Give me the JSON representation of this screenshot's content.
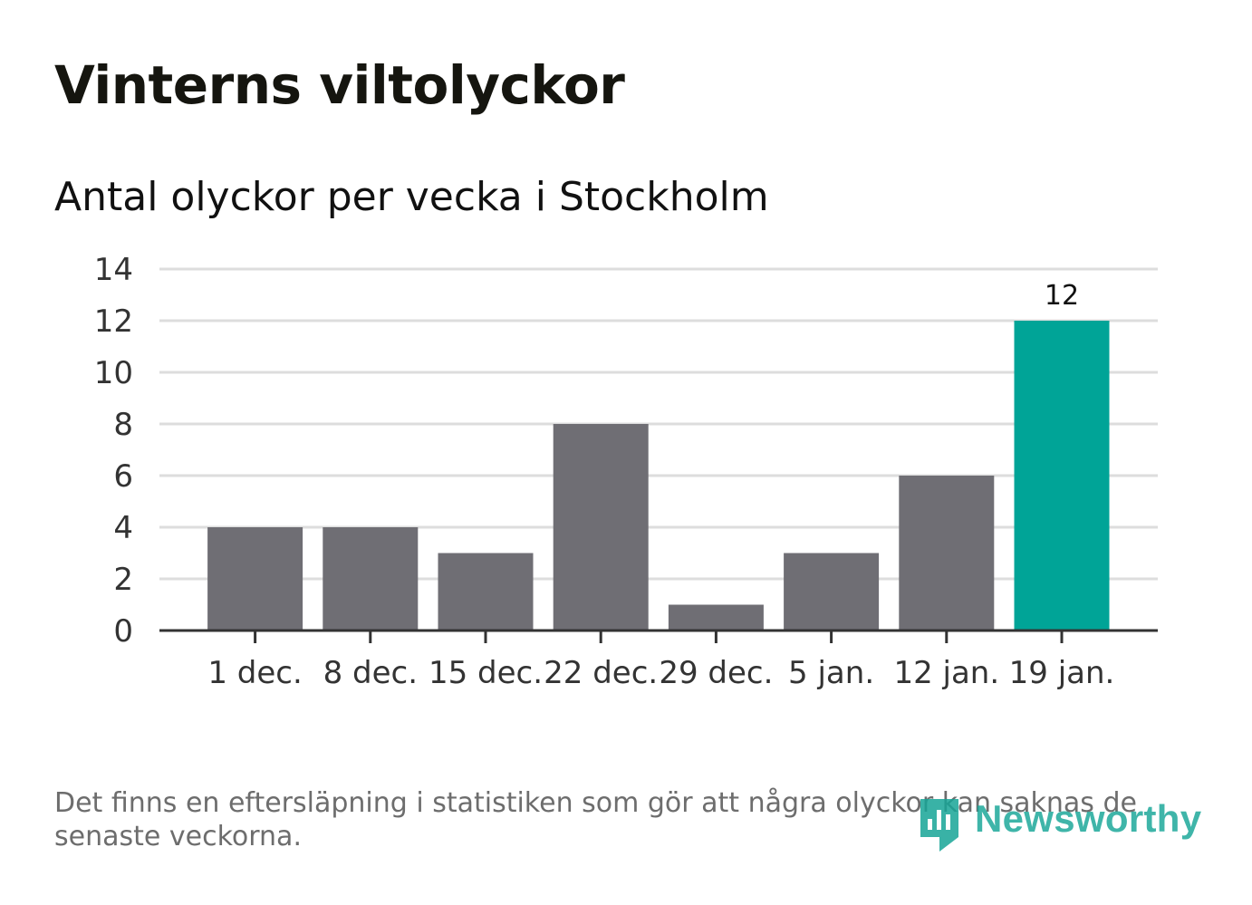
{
  "header": {
    "title": "Vinterns viltolyckor",
    "subtitle": "Antal olyckor per vecka i Stockholm"
  },
  "chart_data": {
    "type": "bar",
    "title": "Vinterns viltolyckor",
    "subtitle": "Antal olyckor per vecka i Stockholm",
    "xlabel": "",
    "ylabel": "",
    "categories": [
      "1 dec.",
      "8 dec.",
      "15 dec.",
      "22 dec.",
      "29 dec.",
      "5 jan.",
      "12 jan.",
      "19 jan."
    ],
    "values": [
      4,
      4,
      3,
      8,
      1,
      3,
      6,
      12
    ],
    "ylim": [
      0,
      14
    ],
    "yticks": [
      0,
      2,
      4,
      6,
      8,
      10,
      12,
      14
    ],
    "grid": true,
    "highlight_index": 7,
    "data_labels": [
      {
        "index": 7,
        "text": "12"
      }
    ],
    "colors": {
      "bar": "#6f6e74",
      "highlight": "#00a497",
      "grid": "#dddddd",
      "axis": "#333333",
      "tick_text": "#333333"
    }
  },
  "footer": {
    "note": "Det finns en eftersläpning i statistiken som gör att några olyckor kan saknas de senaste veckorna.",
    "logo_text": "Newsworthy",
    "logo_icon": "newsworthy-logo-icon",
    "logo_color": "#16a597"
  }
}
